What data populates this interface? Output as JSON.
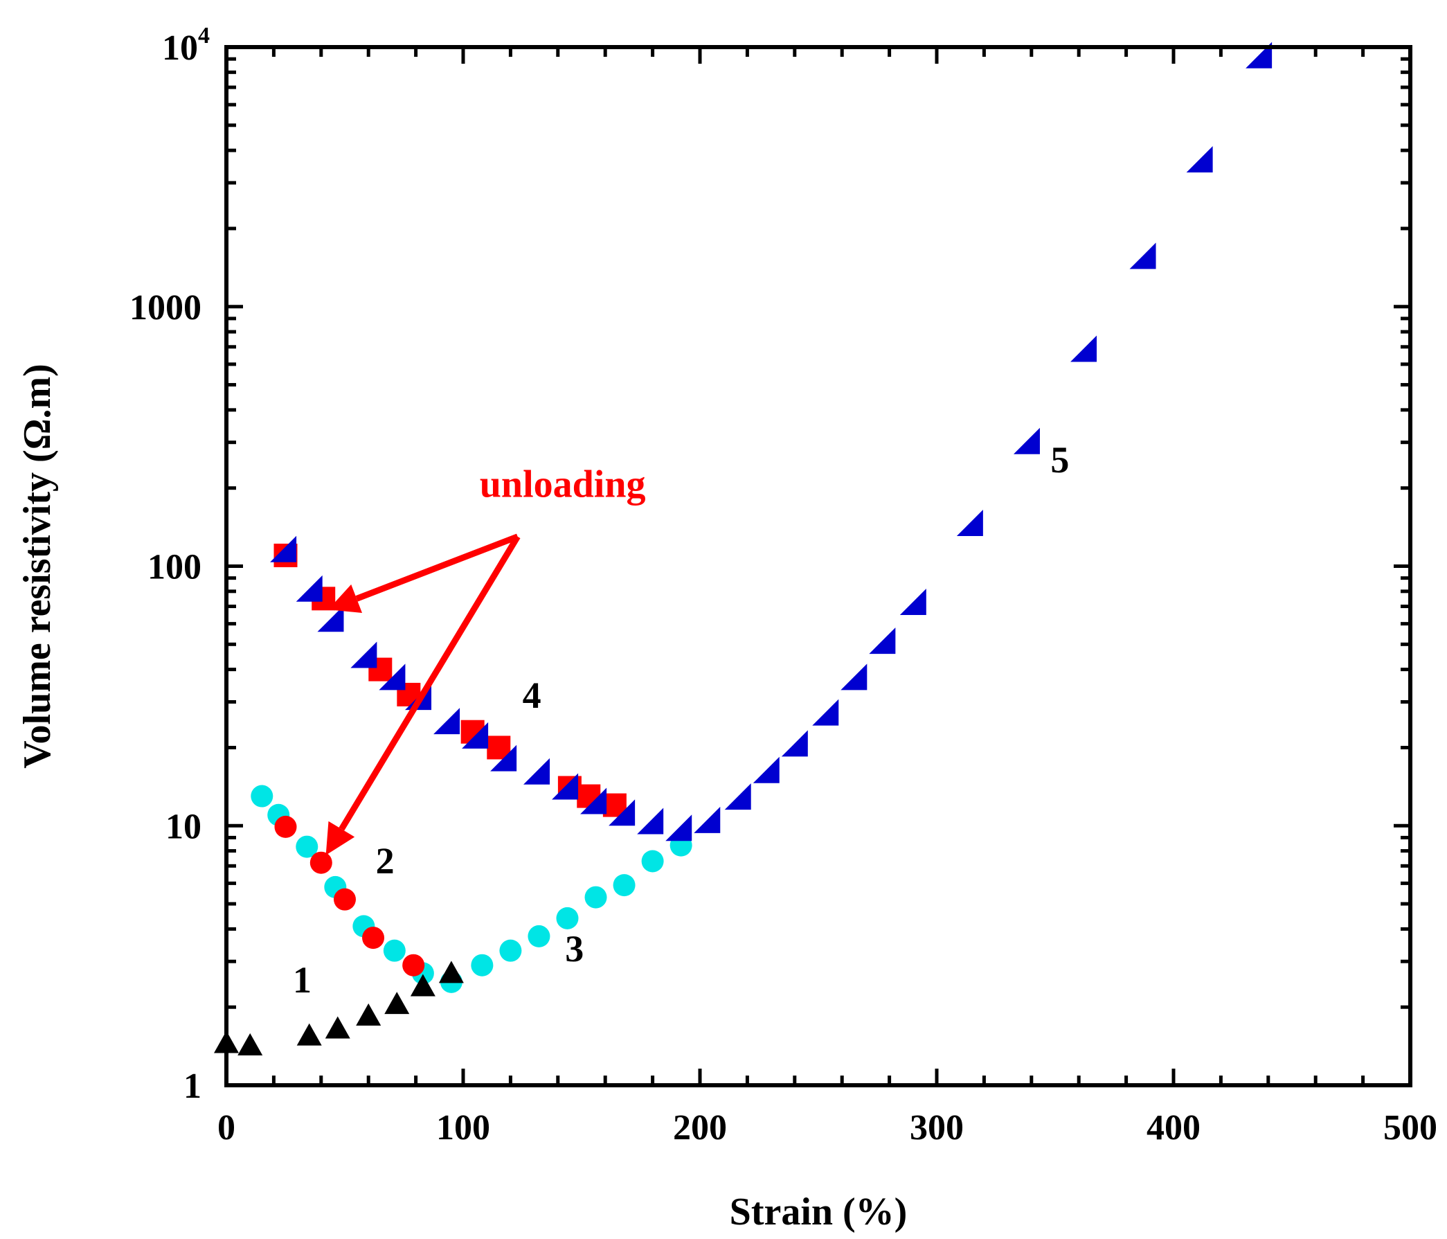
{
  "chart_data": {
    "type": "scatter",
    "xlabel": "Strain (%)",
    "ylabel": "Volume resistivity (Ω.m)",
    "xlim": [
      0,
      500
    ],
    "ylim": [
      1,
      10000
    ],
    "yscale": "log",
    "x_ticks": [
      {
        "value": 0,
        "label": "0"
      },
      {
        "value": 100,
        "label": "100"
      },
      {
        "value": 200,
        "label": "200"
      },
      {
        "value": 300,
        "label": "300"
      },
      {
        "value": 400,
        "label": "400"
      },
      {
        "value": 500,
        "label": "500"
      }
    ],
    "y_ticks": [
      {
        "value": 1,
        "label": "1"
      },
      {
        "value": 10,
        "label": "10"
      },
      {
        "value": 100,
        "label": "100"
      },
      {
        "value": 1000,
        "label": "1000"
      },
      {
        "value": 10000,
        "label": "10",
        "sup": "4"
      }
    ],
    "series": [
      {
        "name": "1",
        "marker": "triangle",
        "color": "#000000",
        "points": [
          [
            0,
            1.45
          ],
          [
            10,
            1.42
          ],
          [
            35,
            1.55
          ],
          [
            47,
            1.65
          ],
          [
            60,
            1.85
          ],
          [
            72,
            2.05
          ],
          [
            83,
            2.4
          ],
          [
            95,
            2.7
          ]
        ]
      },
      {
        "name": "2",
        "marker": "circle",
        "color": "#ff0000",
        "points": [
          [
            25,
            9.9
          ],
          [
            40,
            7.2
          ],
          [
            50,
            5.2
          ],
          [
            62,
            3.7
          ],
          [
            79,
            2.9
          ]
        ]
      },
      {
        "name": "3",
        "marker": "circle",
        "color": "#00e5e5",
        "points": [
          [
            15,
            13
          ],
          [
            22,
            11
          ],
          [
            34,
            8.3
          ],
          [
            46,
            5.8
          ],
          [
            58,
            4.1
          ],
          [
            71,
            3.3
          ],
          [
            83,
            2.7
          ],
          [
            95,
            2.5
          ],
          [
            108,
            2.9
          ],
          [
            120,
            3.3
          ],
          [
            132,
            3.75
          ],
          [
            144,
            4.4
          ],
          [
            156,
            5.3
          ],
          [
            168,
            5.9
          ],
          [
            180,
            7.3
          ],
          [
            192,
            8.4
          ]
        ]
      },
      {
        "name": "4",
        "marker": "square",
        "color": "#ff0000",
        "points": [
          [
            25,
            110
          ],
          [
            41,
            75
          ],
          [
            65,
            40
          ],
          [
            77,
            32
          ],
          [
            104,
            23
          ],
          [
            115,
            20
          ],
          [
            145,
            14
          ],
          [
            153,
            13
          ],
          [
            164,
            12
          ]
        ]
      },
      {
        "name": "5",
        "marker": "right-triangle",
        "color": "#0000d0",
        "points": [
          [
            24,
            115
          ],
          [
            35,
            81
          ],
          [
            44,
            62
          ],
          [
            58,
            45
          ],
          [
            70,
            37
          ],
          [
            81,
            31
          ],
          [
            93,
            25
          ],
          [
            105,
            22
          ],
          [
            117,
            18
          ],
          [
            131,
            16
          ],
          [
            143,
            14
          ],
          [
            155,
            12.3
          ],
          [
            167,
            11.1
          ],
          [
            179,
            10.3
          ],
          [
            191,
            9.7
          ],
          [
            203,
            10.4
          ],
          [
            216,
            12.8
          ],
          [
            228,
            16.2
          ],
          [
            240,
            20.5
          ],
          [
            253,
            27
          ],
          [
            265,
            37
          ],
          [
            277,
            51
          ],
          [
            290,
            72
          ],
          [
            314,
            145
          ],
          [
            338,
            300
          ],
          [
            362,
            680
          ],
          [
            387,
            1550
          ],
          [
            411,
            3650
          ],
          [
            436,
            9200
          ]
        ]
      }
    ],
    "annotations": [
      {
        "id": "label-1",
        "text": "1",
        "x": 32,
        "y": 2.28,
        "style": "black"
      },
      {
        "id": "label-2",
        "text": "2",
        "x": 67,
        "y": 6.55,
        "style": "black"
      },
      {
        "id": "label-3",
        "text": "3",
        "x": 147,
        "y": 3.0,
        "style": "black"
      },
      {
        "id": "label-4",
        "text": "4",
        "x": 129,
        "y": 28.5,
        "style": "black"
      },
      {
        "id": "label-5",
        "text": "5",
        "x": 352,
        "y": 230,
        "style": "black"
      },
      {
        "id": "unloading-label",
        "text": "unloading",
        "x": 142,
        "y": 185,
        "style": "red"
      }
    ],
    "arrows": [
      {
        "id": "arrow-to-series-4",
        "from": [
          123,
          130
        ],
        "to": [
          43,
          68
        ]
      },
      {
        "id": "arrow-to-series-2",
        "from": [
          123,
          130
        ],
        "to": [
          42,
          7.7
        ]
      }
    ]
  }
}
